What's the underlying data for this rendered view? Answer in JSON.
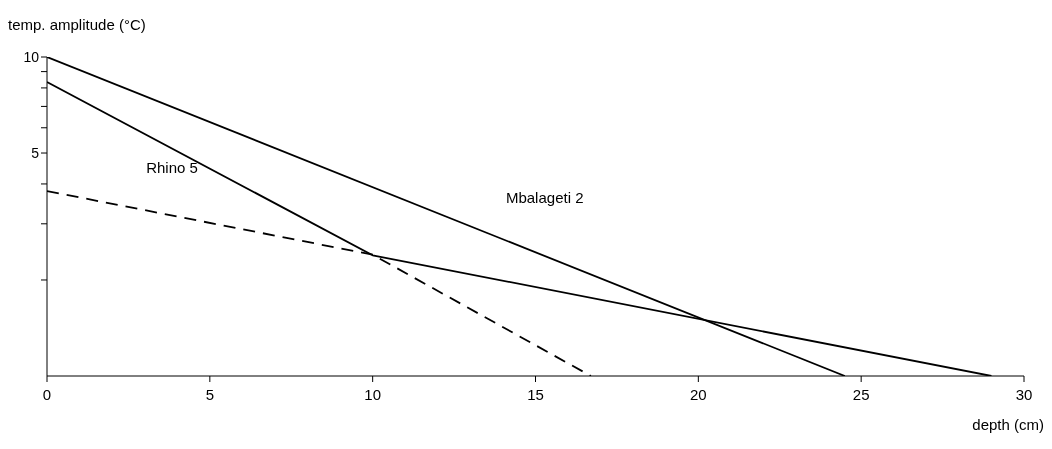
{
  "chart_data": {
    "type": "line",
    "xlabel": "depth (cm)",
    "ylabel": "temp. amplitude (°C)",
    "log": "y",
    "xlim": [
      0,
      30
    ],
    "xticks": [
      0,
      5,
      10,
      15,
      20,
      25,
      30
    ],
    "ylim": [
      1,
      10
    ],
    "yticks": [
      {
        "value": 2,
        "label": null
      },
      {
        "value": 3,
        "label": null
      },
      {
        "value": 4,
        "label": null
      },
      5,
      {
        "value": 6,
        "label": null
      },
      {
        "value": 7,
        "label": null
      },
      {
        "value": 8,
        "label": null
      },
      {
        "value": 9,
        "label": null
      },
      10
    ],
    "marker": "none",
    "line_style": "solid",
    "series": [
      {
        "name": "Mbalageti 2",
        "color": "#000000",
        "x": [
          0,
          24.5
        ],
        "values": [
          10,
          1
        ]
      },
      {
        "name": "Rhino 5",
        "color": "#000000",
        "x": [
          0,
          10,
          29
        ],
        "values": [
          8.35,
          2.39,
          1
        ]
      },
      {
        "color": "#000000",
        "x": [
          0,
          10,
          16.7
        ],
        "values": [
          3.8,
          2.4,
          1
        ],
        "line_style": "dashed"
      }
    ]
  }
}
